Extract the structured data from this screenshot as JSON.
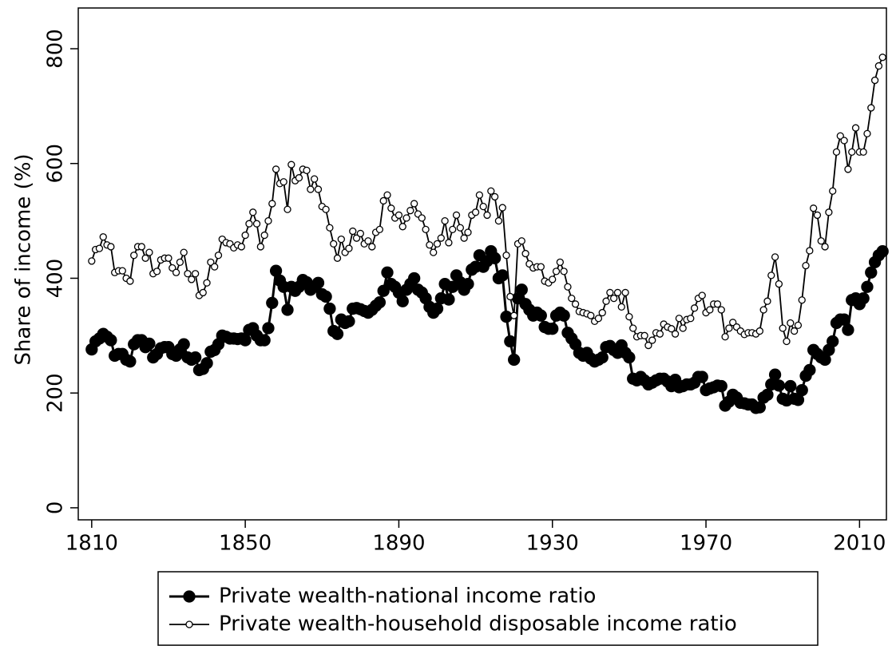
{
  "chart_data": {
    "type": "line",
    "y_label": "Share of income (%)",
    "x": [
      1810,
      1811,
      1812,
      1813,
      1814,
      1815,
      1816,
      1817,
      1818,
      1819,
      1820,
      1821,
      1822,
      1823,
      1824,
      1825,
      1826,
      1827,
      1828,
      1829,
      1830,
      1831,
      1832,
      1833,
      1834,
      1835,
      1836,
      1837,
      1838,
      1839,
      1840,
      1841,
      1842,
      1843,
      1844,
      1845,
      1846,
      1847,
      1848,
      1849,
      1850,
      1851,
      1852,
      1853,
      1854,
      1855,
      1856,
      1857,
      1858,
      1859,
      1860,
      1861,
      1862,
      1863,
      1864,
      1865,
      1866,
      1867,
      1868,
      1869,
      1870,
      1871,
      1872,
      1873,
      1874,
      1875,
      1876,
      1877,
      1878,
      1879,
      1880,
      1881,
      1882,
      1883,
      1884,
      1885,
      1886,
      1887,
      1888,
      1889,
      1890,
      1891,
      1892,
      1893,
      1894,
      1895,
      1896,
      1897,
      1898,
      1899,
      1900,
      1901,
      1902,
      1903,
      1904,
      1905,
      1906,
      1907,
      1908,
      1909,
      1910,
      1911,
      1912,
      1913,
      1914,
      1915,
      1916,
      1917,
      1918,
      1919,
      1920,
      1921,
      1922,
      1923,
      1924,
      1925,
      1926,
      1927,
      1928,
      1929,
      1930,
      1931,
      1932,
      1933,
      1934,
      1935,
      1936,
      1937,
      1938,
      1939,
      1940,
      1941,
      1942,
      1943,
      1944,
      1945,
      1946,
      1947,
      1948,
      1949,
      1950,
      1951,
      1952,
      1953,
      1954,
      1955,
      1956,
      1957,
      1958,
      1959,
      1960,
      1961,
      1962,
      1963,
      1964,
      1965,
      1966,
      1967,
      1968,
      1969,
      1970,
      1971,
      1972,
      1973,
      1974,
      1975,
      1976,
      1977,
      1978,
      1979,
      1980,
      1981,
      1982,
      1983,
      1984,
      1985,
      1986,
      1987,
      1988,
      1989,
      1990,
      1991,
      1992,
      1993,
      1994,
      1995,
      1996,
      1997,
      1998,
      1999,
      2000,
      2001,
      2002,
      2003,
      2004,
      2005,
      2006,
      2007,
      2008,
      2009,
      2010,
      2011,
      2012,
      2013,
      2014,
      2015,
      2016
    ],
    "series": [
      {
        "name": "Private wealth-national income ratio",
        "color": "#000000",
        "marker": "filled",
        "values": [
          276,
          290,
          295,
          303,
          298,
          292,
          265,
          268,
          268,
          258,
          255,
          285,
          292,
          292,
          280,
          286,
          262,
          268,
          278,
          280,
          280,
          268,
          265,
          276,
          285,
          262,
          258,
          262,
          240,
          242,
          252,
          272,
          275,
          285,
          300,
          298,
          295,
          295,
          294,
          295,
          292,
          310,
          313,
          300,
          292,
          292,
          313,
          357,
          413,
          396,
          385,
          345,
          385,
          378,
          385,
          397,
          393,
          380,
          385,
          392,
          372,
          368,
          347,
          308,
          303,
          328,
          322,
          325,
          347,
          348,
          346,
          343,
          340,
          345,
          352,
          358,
          378,
          410,
          390,
          385,
          375,
          360,
          380,
          390,
          400,
          380,
          375,
          365,
          350,
          340,
          347,
          365,
          390,
          363,
          385,
          405,
          393,
          380,
          390,
          415,
          420,
          440,
          420,
          430,
          447,
          435,
          400,
          405,
          333,
          290,
          258,
          365,
          380,
          355,
          345,
          335,
          340,
          335,
          315,
          312,
          312,
          335,
          340,
          335,
          305,
          295,
          285,
          270,
          265,
          270,
          260,
          255,
          258,
          262,
          280,
          282,
          275,
          270,
          283,
          270,
          262,
          225,
          222,
          228,
          222,
          215,
          218,
          222,
          225,
          225,
          220,
          212,
          223,
          210,
          212,
          215,
          215,
          218,
          228,
          228,
          205,
          208,
          210,
          213,
          212,
          178,
          185,
          197,
          192,
          183,
          182,
          180,
          180,
          174,
          175,
          192,
          197,
          215,
          232,
          213,
          190,
          187,
          212,
          190,
          188,
          205,
          230,
          240,
          275,
          268,
          262,
          258,
          275,
          290,
          322,
          328,
          328,
          310,
          362,
          365,
          355,
          365,
          385,
          410,
          428,
          440,
          447
        ]
      },
      {
        "name": "Private wealth-household disposable income ratio",
        "color": "#000000",
        "marker": "open",
        "values": [
          430,
          450,
          452,
          472,
          458,
          455,
          410,
          413,
          413,
          400,
          395,
          440,
          455,
          455,
          435,
          445,
          408,
          412,
          432,
          435,
          435,
          418,
          410,
          428,
          445,
          408,
          398,
          408,
          370,
          375,
          392,
          428,
          420,
          440,
          468,
          462,
          460,
          453,
          458,
          455,
          475,
          495,
          515,
          495,
          455,
          475,
          500,
          530,
          590,
          565,
          568,
          520,
          598,
          570,
          575,
          590,
          588,
          555,
          573,
          555,
          525,
          520,
          488,
          460,
          435,
          468,
          445,
          452,
          482,
          470,
          478,
          460,
          465,
          455,
          480,
          485,
          535,
          545,
          522,
          505,
          510,
          490,
          505,
          518,
          530,
          512,
          505,
          485,
          458,
          445,
          460,
          470,
          500,
          462,
          485,
          510,
          488,
          470,
          480,
          510,
          515,
          545,
          525,
          510,
          552,
          542,
          500,
          523,
          440,
          368,
          335,
          460,
          465,
          443,
          425,
          418,
          420,
          420,
          395,
          392,
          398,
          412,
          428,
          412,
          385,
          365,
          355,
          342,
          340,
          338,
          335,
          325,
          330,
          340,
          360,
          375,
          365,
          375,
          350,
          375,
          333,
          313,
          298,
          300,
          300,
          283,
          292,
          305,
          303,
          320,
          315,
          312,
          303,
          330,
          313,
          328,
          330,
          348,
          365,
          370,
          340,
          345,
          355,
          355,
          345,
          298,
          313,
          323,
          315,
          308,
          302,
          305,
          305,
          303,
          308,
          345,
          360,
          405,
          437,
          390,
          313,
          290,
          322,
          308,
          318,
          362,
          422,
          448,
          522,
          510,
          465,
          455,
          515,
          552,
          620,
          648,
          640,
          590,
          620,
          662,
          620,
          620,
          652,
          697,
          745,
          770,
          785
        ]
      }
    ],
    "xlim": [
      1806.5,
      2017
    ],
    "xticks": [
      1810,
      1850,
      1890,
      1930,
      1970,
      2010
    ],
    "ylim": [
      -21,
      871
    ],
    "yticks": [
      0,
      200,
      400,
      600,
      800
    ],
    "legend": "bottom"
  }
}
